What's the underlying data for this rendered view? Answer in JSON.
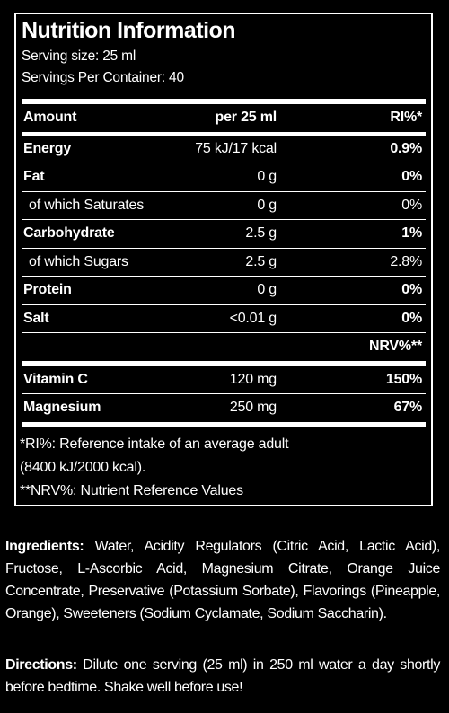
{
  "header": {
    "title": "Nutrition Information",
    "serving_size": "Serving size: 25 ml",
    "servings_per_container": "Servings Per Container: 40"
  },
  "table": {
    "columns": [
      "Amount",
      "per 25 ml",
      "RI%*"
    ],
    "rows": [
      {
        "name": "Energy",
        "amount": "75 kJ/17 kcal",
        "percent": "0.9%"
      },
      {
        "name": "Fat",
        "amount": "0 g",
        "percent": "0%"
      },
      {
        "name": "of which Saturates",
        "amount": "0 g",
        "percent": "0%",
        "indent": true
      },
      {
        "name": "Carbohydrate",
        "amount": "2.5 g",
        "percent": "1%"
      },
      {
        "name": "of which Sugars",
        "amount": "2.5 g",
        "percent": "2.8%",
        "indent": true
      },
      {
        "name": "Protein",
        "amount": "0 g",
        "percent": "0%"
      },
      {
        "name": "Salt",
        "amount": "<0.01 g",
        "percent": "0%"
      }
    ],
    "nrv_header": "NRV%**",
    "nrv_rows": [
      {
        "name": "Vitamin C",
        "amount": "120 mg",
        "percent": "150%"
      },
      {
        "name": "Magnesium",
        "amount": "250 mg",
        "percent": "67%"
      }
    ]
  },
  "footnotes": [
    "*RI%: Reference intake of an average adult",
    "(8400 kJ/2000 kcal).",
    "**NRV%: Nutrient Reference Values"
  ],
  "ingredients": {
    "label": "Ingredients:",
    "text": "Water, Acidity Regulators (Citric Acid, Lactic Acid), Fructose, L-Ascorbic Acid, Magnesium Citrate, Orange Juice Concentrate, Preservative (Potassium Sorbate), Flavorings (Pineapple, Orange), Sweeteners (Sodium Cyclamate, Sodium Saccharin)."
  },
  "directions": {
    "label": "Directions:",
    "text": "Dilute one serving (25 ml) in 250 ml water a day shortly before bedtime. Shake well before use!"
  }
}
